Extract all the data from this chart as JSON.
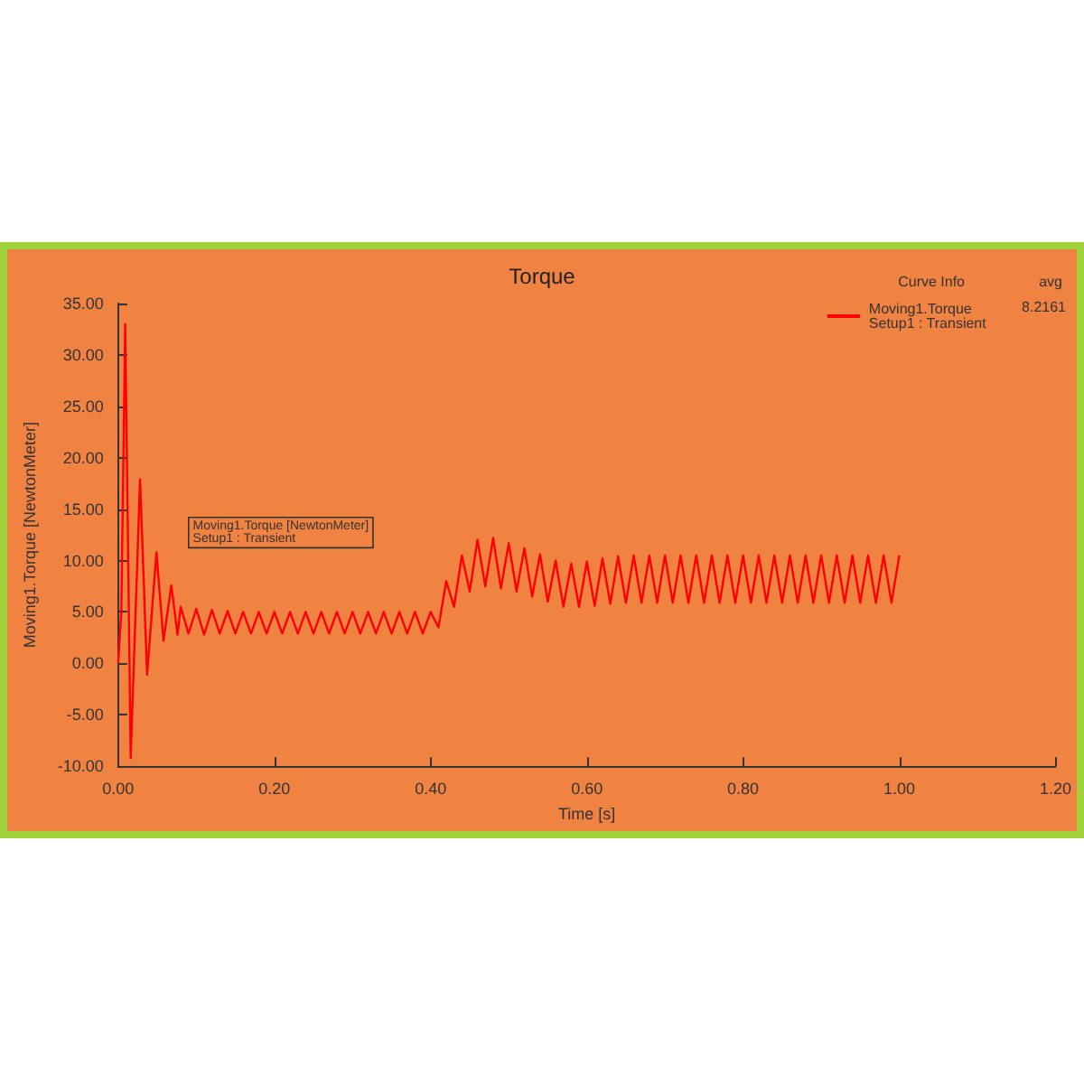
{
  "chart_data": {
    "type": "line",
    "title": "Torque",
    "xlabel": "Time [s]",
    "ylabel": "Moving1.Torque [NewtonMeter]",
    "series": [
      {
        "name": "Moving1.Torque\nSetup1 : Transient",
        "color": "#ff0000",
        "x": [
          0,
          0.004,
          0.009,
          0.016,
          0.028,
          0.037,
          0.049,
          0.058,
          0.068,
          0.076,
          0.08,
          0.09,
          0.1,
          0.11,
          0.12,
          0.13,
          0.14,
          0.15,
          0.16,
          0.17,
          0.18,
          0.19,
          0.2,
          0.21,
          0.22,
          0.23,
          0.24,
          0.25,
          0.26,
          0.27,
          0.28,
          0.29,
          0.3,
          0.31,
          0.32,
          0.33,
          0.34,
          0.35,
          0.36,
          0.37,
          0.38,
          0.39,
          0.4,
          0.41,
          0.42,
          0.43,
          0.44,
          0.45,
          0.46,
          0.47,
          0.48,
          0.49,
          0.5,
          0.51,
          0.52,
          0.53,
          0.54,
          0.55,
          0.56,
          0.57,
          0.58,
          0.59,
          0.6,
          0.61,
          0.62,
          0.63,
          0.64,
          0.65,
          0.66,
          0.67,
          0.68,
          0.69,
          0.7,
          0.71,
          0.72,
          0.73,
          0.74,
          0.75,
          0.76,
          0.77,
          0.78,
          0.79,
          0.8,
          0.81,
          0.82,
          0.83,
          0.84,
          0.85,
          0.86,
          0.87,
          0.88,
          0.89,
          0.9,
          0.91,
          0.92,
          0.93,
          0.94,
          0.95,
          0.96,
          0.97,
          0.98,
          0.99,
          1
        ],
        "values": [
          0,
          5,
          33,
          -9.2,
          17.9,
          -1.1,
          10.8,
          2.2,
          7.6,
          2.8,
          5.5,
          2.9,
          5.3,
          2.8,
          5.2,
          2.9,
          5.1,
          2.9,
          5.0,
          2.9,
          5.0,
          2.9,
          5.0,
          2.9,
          5.0,
          2.9,
          5.0,
          2.9,
          5.0,
          2.9,
          5.0,
          2.9,
          5.0,
          2.9,
          5.0,
          2.9,
          5.0,
          2.9,
          5.0,
          2.9,
          5.0,
          2.9,
          5.0,
          3.5,
          8.0,
          5.5,
          10.5,
          7.0,
          12.0,
          7.5,
          12.2,
          7.3,
          11.7,
          7.0,
          11.2,
          6.5,
          10.6,
          6.0,
          10.0,
          5.5,
          9.7,
          5.5,
          9.9,
          5.6,
          10.2,
          5.8,
          10.4,
          5.9,
          10.5,
          5.9,
          10.5,
          5.9,
          10.5,
          5.9,
          10.5,
          5.9,
          10.5,
          5.9,
          10.5,
          5.9,
          10.5,
          5.9,
          10.5,
          5.9,
          10.5,
          5.9,
          10.5,
          5.9,
          10.5,
          5.9,
          10.5,
          5.9,
          10.5,
          5.9,
          10.5,
          5.9,
          10.5,
          5.9,
          10.5,
          5.9,
          10.5,
          5.9,
          10.5
        ]
      }
    ],
    "xlim": [
      0,
      1.2
    ],
    "xticks": [
      {
        "value": 0,
        "label": "0.00"
      },
      {
        "value": 0.2,
        "label": "0.20"
      },
      {
        "value": 0.4,
        "label": "0.40"
      },
      {
        "value": 0.6,
        "label": "0.60"
      },
      {
        "value": 0.8,
        "label": "0.80"
      },
      {
        "value": 1,
        "label": "1.00"
      },
      {
        "value": 1.2,
        "label": "1.20"
      }
    ],
    "ylim": [
      -10,
      35
    ],
    "yticks": [
      {
        "value": -10,
        "label": "-10.00"
      },
      {
        "value": -5,
        "label": "-5.00"
      },
      {
        "value": 0,
        "label": "0.00"
      },
      {
        "value": 5,
        "label": "5.00"
      },
      {
        "value": 10,
        "label": "10.00"
      },
      {
        "value": 15,
        "label": "15.00"
      },
      {
        "value": 20,
        "label": "20.00"
      },
      {
        "value": 25,
        "label": "25.00"
      },
      {
        "value": 30,
        "label": "30.00"
      },
      {
        "value": 35,
        "label": "35.00"
      }
    ],
    "legend": "top right",
    "grid": false,
    "marker": "none",
    "line_style": "solid",
    "annotations": [
      "Moving1.Torque [NewtonMeter]\nSetup1 : Transient",
      "Curve Info",
      "avg",
      "8.2161"
    ]
  }
}
